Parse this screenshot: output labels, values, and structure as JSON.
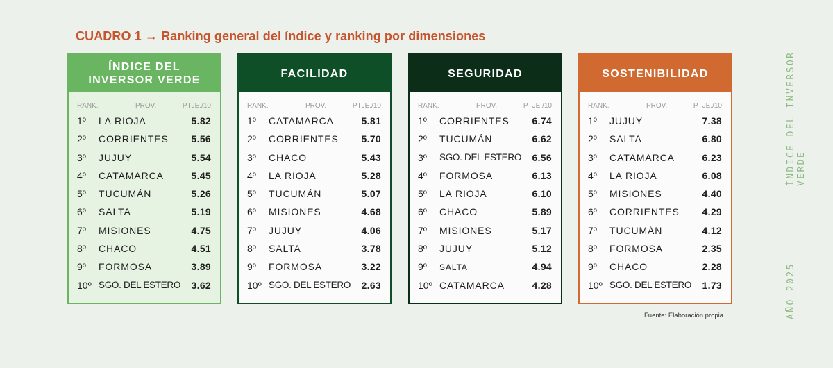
{
  "title": "CUADRO 1 → Ranking general del índice y ranking por dimensiones",
  "sidebar": {
    "top_label": "ÍNDICE DEL INVERSOR VERDE",
    "bottom_label": "AÑO 2025"
  },
  "column_headers": {
    "rank": "RANK.",
    "prov": "PROV.",
    "score": "PTJE./10"
  },
  "source": "Fuente: Elaboración propia",
  "colors": {
    "indice": "#6ab562",
    "facilidad": "#0f4f28",
    "seguridad": "#0c2d18",
    "sostenibilidad": "#d06a31",
    "title": "#c6542d"
  },
  "panels": [
    {
      "title_line1": "ÍNDICE DEL",
      "title_line2": "INVERSOR VERDE",
      "rows": [
        {
          "rank": "1º",
          "prov": "LA RIOJA",
          "score": "5.82"
        },
        {
          "rank": "2º",
          "prov": "CORRIENTES",
          "score": "5.56"
        },
        {
          "rank": "3º",
          "prov": "JUJUY",
          "score": "5.54"
        },
        {
          "rank": "4º",
          "prov": "CATAMARCA",
          "score": "5.45"
        },
        {
          "rank": "5º",
          "prov": "TUCUMÁN",
          "score": "5.26"
        },
        {
          "rank": "6º",
          "prov": "SALTA",
          "score": "5.19"
        },
        {
          "rank": "7º",
          "prov": "MISIONES",
          "score": "4.75"
        },
        {
          "rank": "8º",
          "prov": "CHACO",
          "score": "4.51"
        },
        {
          "rank": "9º",
          "prov": "FORMOSA",
          "score": "3.89"
        },
        {
          "rank": "10º",
          "prov": "SGO. DEL ESTERO",
          "score": "3.62"
        }
      ]
    },
    {
      "title_line1": "FACILIDAD",
      "title_line2": "",
      "rows": [
        {
          "rank": "1º",
          "prov": "CATAMARCA",
          "score": "5.81"
        },
        {
          "rank": "2º",
          "prov": "CORRIENTES",
          "score": "5.70"
        },
        {
          "rank": "3º",
          "prov": "CHACO",
          "score": "5.43"
        },
        {
          "rank": "4º",
          "prov": "LA RIOJA",
          "score": "5.28"
        },
        {
          "rank": "5º",
          "prov": "TUCUMÁN",
          "score": "5.07"
        },
        {
          "rank": "6º",
          "prov": "MISIONES",
          "score": "4.68"
        },
        {
          "rank": "7º",
          "prov": "JUJUY",
          "score": "4.06"
        },
        {
          "rank": "8º",
          "prov": "SALTA",
          "score": "3.78"
        },
        {
          "rank": "9º",
          "prov": "FORMOSA",
          "score": "3.22"
        },
        {
          "rank": "10º",
          "prov": "SGO. DEL ESTERO",
          "score": "2.63"
        }
      ]
    },
    {
      "title_line1": "SEGURIDAD",
      "title_line2": "",
      "rows": [
        {
          "rank": "1º",
          "prov": "CORRIENTES",
          "score": "6.74"
        },
        {
          "rank": "2º",
          "prov": "TUCUMÁN",
          "score": "6.62"
        },
        {
          "rank": "3º",
          "prov": "SGO. DEL ESTERO",
          "score": "6.56"
        },
        {
          "rank": "4º",
          "prov": "FORMOSA",
          "score": "6.13"
        },
        {
          "rank": "5º",
          "prov": "LA RIOJA",
          "score": "6.10"
        },
        {
          "rank": "6º",
          "prov": "CHACO",
          "score": "5.89"
        },
        {
          "rank": "7º",
          "prov": "MISIONES",
          "score": "5.17"
        },
        {
          "rank": "8º",
          "prov": "JUJUY",
          "score": "5.12"
        },
        {
          "rank": "9º",
          "prov": "SALTA",
          "score": "4.94"
        },
        {
          "rank": "10º",
          "prov": "CATAMARCA",
          "score": "4.28"
        }
      ]
    },
    {
      "title_line1": "SOSTENIBILIDAD",
      "title_line2": "",
      "rows": [
        {
          "rank": "1º",
          "prov": "JUJUY",
          "score": "7.38"
        },
        {
          "rank": "2º",
          "prov": "SALTA",
          "score": "6.80"
        },
        {
          "rank": "3º",
          "prov": "CATAMARCA",
          "score": "6.23"
        },
        {
          "rank": "4º",
          "prov": "LA RIOJA",
          "score": "6.08"
        },
        {
          "rank": "5º",
          "prov": "MISIONES",
          "score": "4.40"
        },
        {
          "rank": "6º",
          "prov": "CORRIENTES",
          "score": "4.29"
        },
        {
          "rank": "7º",
          "prov": "TUCUMÁN",
          "score": "4.12"
        },
        {
          "rank": "8º",
          "prov": "FORMOSA",
          "score": "2.35"
        },
        {
          "rank": "9º",
          "prov": "CHACO",
          "score": "2.28"
        },
        {
          "rank": "10º",
          "prov": "SGO. DEL ESTERO",
          "score": "1.73"
        }
      ]
    }
  ]
}
